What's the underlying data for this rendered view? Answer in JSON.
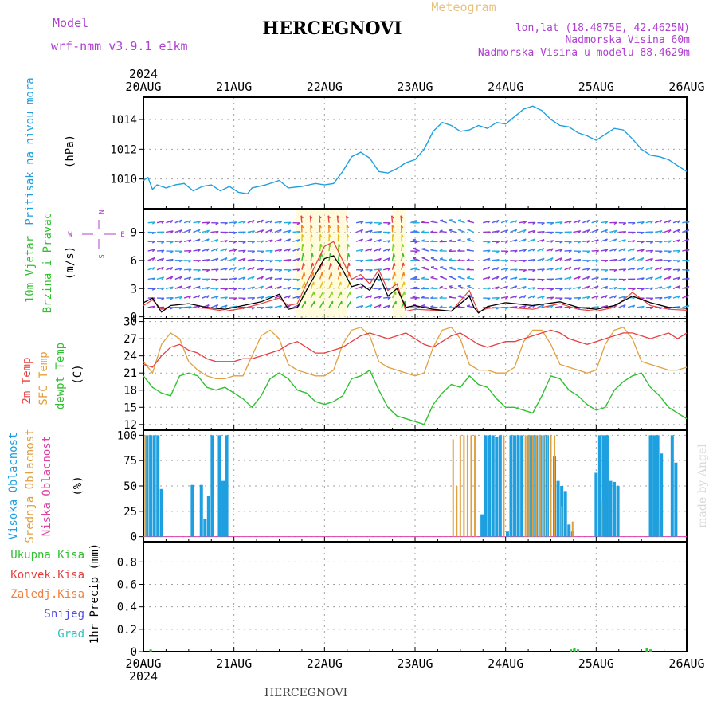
{
  "header": {
    "model_label": "Model",
    "model_name": "wrf-nmm_v3.9.1 e1km",
    "title": "HERCEGNOVI",
    "meteogram_label": "Meteogram",
    "lonlat": "lon,lat (18.4875E, 42.4625N)",
    "elevation": "Nadmorska Visina 60m",
    "model_elevation": "Nadmorska Visina u modelu 88.4629m",
    "footer_title": "HERCEGNOVI",
    "credit": "made by Angel"
  },
  "colors": {
    "purple": "#b040d0",
    "pressure": "#1ea0e0",
    "wind_green": "#30c030",
    "t2m": "#e84040",
    "sfc": "#e0a040",
    "dew": "#30c030",
    "cloud_high": "#1ea0e0",
    "cloud_mid": "#e0a040",
    "cloud_low": "#e040a0",
    "precip_total": "#30c030",
    "precip_conv": "#e84040",
    "precip_frz": "#f08040",
    "precip_snow": "#5050e0",
    "precip_hail": "#30c0c0",
    "grid": "#a0a0a0"
  },
  "chart_data": [
    {
      "id": "pressure",
      "type": "line",
      "ylabel_lines": [
        "Pritisak na nivou mora",
        "(hPa)"
      ],
      "yticks": [
        "1010",
        "1012",
        "1014"
      ],
      "ylim": [
        1008,
        1015.5
      ],
      "x_unit": "days since 20AUG 00z",
      "xlim": [
        0,
        6
      ],
      "series": [
        {
          "x": [
            0,
            0.05,
            0.1,
            0.15,
            0.25,
            0.35,
            0.45,
            0.55,
            0.65,
            0.75,
            0.85,
            0.95,
            1.05,
            1.15,
            1.2,
            1.35,
            1.5,
            1.6,
            1.75,
            1.9,
            2.0,
            2.1,
            2.2,
            2.3,
            2.4,
            2.5,
            2.6,
            2.7,
            2.8,
            2.9,
            3.0,
            3.1,
            3.2,
            3.3,
            3.4,
            3.5,
            3.6,
            3.7,
            3.8,
            3.9,
            4.0,
            4.1,
            4.2,
            4.3,
            4.4,
            4.5,
            4.6,
            4.7,
            4.8,
            4.9,
            5.0,
            5.1,
            5.2,
            5.3,
            5.4,
            5.5,
            5.6,
            5.7,
            5.8,
            5.9,
            6.0
          ],
          "y": [
            1009.9,
            1010.1,
            1009.3,
            1009.6,
            1009.4,
            1009.6,
            1009.7,
            1009.2,
            1009.5,
            1009.6,
            1009.2,
            1009.5,
            1009.1,
            1009.0,
            1009.4,
            1009.6,
            1009.9,
            1009.4,
            1009.5,
            1009.7,
            1009.6,
            1009.7,
            1010.5,
            1011.5,
            1011.8,
            1011.4,
            1010.5,
            1010.4,
            1010.7,
            1011.1,
            1011.3,
            1012.0,
            1013.2,
            1013.8,
            1013.6,
            1013.2,
            1013.3,
            1013.6,
            1013.4,
            1013.8,
            1013.7,
            1014.2,
            1014.7,
            1014.9,
            1014.6,
            1014.0,
            1013.6,
            1013.5,
            1013.1,
            1012.9,
            1012.6,
            1013.0,
            1013.4,
            1013.3,
            1012.7,
            1012.0,
            1011.6,
            1011.5,
            1011.3,
            1010.9,
            1010.5
          ]
        }
      ]
    },
    {
      "id": "wind",
      "type": "line",
      "ylabel_lines": [
        "10m Vjetar",
        "Brzina i Pravac",
        "(m/s)"
      ],
      "compass": {
        "n": "N",
        "w": "W",
        "e": "E",
        "s": "S"
      },
      "yticks": [
        "0",
        "3",
        "6",
        "9"
      ],
      "ylim": [
        -0.2,
        11.5
      ],
      "x_unit": "days since 20AUG 00z",
      "xlim": [
        0,
        6
      ],
      "series": [
        {
          "name": "speed_black",
          "x": [
            0,
            0.1,
            0.2,
            0.3,
            0.5,
            0.7,
            0.9,
            1.1,
            1.3,
            1.5,
            1.6,
            1.7,
            1.8,
            1.9,
            2.0,
            2.1,
            2.2,
            2.3,
            2.4,
            2.5,
            2.6,
            2.7,
            2.8,
            2.9,
            3.0,
            3.2,
            3.4,
            3.6,
            3.65,
            3.7,
            3.8,
            4.0,
            4.3,
            4.6,
            4.8,
            5.0,
            5.2,
            5.4,
            5.6,
            5.8,
            6.0
          ],
          "y": [
            1.5,
            2.0,
            0.5,
            1.2,
            1.4,
            1.0,
            0.8,
            1.2,
            1.6,
            2.4,
            0.8,
            1.0,
            2.8,
            4.5,
            6.2,
            6.5,
            5.0,
            3.2,
            3.5,
            2.8,
            4.5,
            2.2,
            3.0,
            1.0,
            1.2,
            0.8,
            0.6,
            2.2,
            1.0,
            0.4,
            1.1,
            1.5,
            1.2,
            1.6,
            1.0,
            0.8,
            1.2,
            2.2,
            1.5,
            1.0,
            0.9
          ]
        },
        {
          "name": "gust_red",
          "x": [
            0,
            0.1,
            0.2,
            0.3,
            0.5,
            0.7,
            0.9,
            1.1,
            1.3,
            1.5,
            1.6,
            1.7,
            1.8,
            1.9,
            2.0,
            2.1,
            2.2,
            2.3,
            2.4,
            2.5,
            2.6,
            2.7,
            2.8,
            2.9,
            3.0,
            3.2,
            3.4,
            3.6,
            3.65,
            3.7,
            3.8,
            4.0,
            4.3,
            4.6,
            4.8,
            5.0,
            5.2,
            5.4,
            5.6,
            5.8,
            6.0
          ],
          "y": [
            1.2,
            1.8,
            0.8,
            1.0,
            1.0,
            0.9,
            0.6,
            0.9,
            1.4,
            2.0,
            1.2,
            1.4,
            3.5,
            5.5,
            7.5,
            8.0,
            6.0,
            4.0,
            4.5,
            3.5,
            5.0,
            2.8,
            3.5,
            0.6,
            0.8,
            0.7,
            0.6,
            2.8,
            1.6,
            0.5,
            0.9,
            1.0,
            0.8,
            1.4,
            0.8,
            0.6,
            1.0,
            2.6,
            1.2,
            0.8,
            0.7
          ]
        }
      ],
      "strong_wind_bands": [
        [
          1.68,
          2.25
        ],
        [
          2.75,
          2.9
        ]
      ]
    },
    {
      "id": "temperature",
      "type": "line",
      "ylabel_lines": [
        "2m Temp",
        "SFC Temp",
        "dewpt Temp",
        "(C)"
      ],
      "yticks": [
        "12",
        "15",
        "18",
        "21",
        "24",
        "27",
        "30"
      ],
      "ylim": [
        11,
        30.5
      ],
      "x_unit": "days since 20AUG 00z",
      "xlim": [
        0,
        6
      ],
      "series": [
        {
          "name": "2m Temp",
          "x": [
            0,
            0.1,
            0.2,
            0.3,
            0.4,
            0.5,
            0.6,
            0.7,
            0.8,
            0.9,
            1.0,
            1.1,
            1.2,
            1.3,
            1.4,
            1.5,
            1.6,
            1.7,
            1.8,
            1.9,
            2.0,
            2.1,
            2.2,
            2.3,
            2.4,
            2.5,
            2.6,
            2.7,
            2.8,
            2.9,
            3.0,
            3.1,
            3.2,
            3.3,
            3.4,
            3.5,
            3.6,
            3.7,
            3.8,
            3.9,
            4.0,
            4.1,
            4.2,
            4.3,
            4.4,
            4.5,
            4.6,
            4.7,
            4.8,
            4.9,
            5.0,
            5.1,
            5.2,
            5.3,
            5.4,
            5.5,
            5.6,
            5.7,
            5.8,
            5.9,
            6.0
          ],
          "y": [
            22.5,
            22.0,
            24.0,
            25.5,
            26.0,
            25.0,
            24.5,
            23.5,
            23.0,
            23.0,
            23.0,
            23.5,
            23.5,
            24.0,
            24.5,
            25.0,
            26.0,
            26.5,
            25.5,
            24.5,
            24.5,
            25.0,
            25.5,
            26.5,
            27.5,
            28.0,
            27.5,
            27.0,
            27.5,
            28.0,
            27.0,
            26.0,
            25.5,
            26.5,
            27.5,
            28.0,
            27.0,
            26.0,
            25.5,
            26.0,
            26.5,
            26.5,
            27.0,
            27.5,
            28.0,
            28.5,
            28.0,
            27.0,
            26.5,
            26.0,
            26.5,
            27.0,
            27.5,
            28.0,
            28.0,
            27.5,
            27.0,
            27.5,
            28.0,
            27.0,
            28.0
          ]
        },
        {
          "name": "SFC Temp",
          "x": [
            0,
            0.1,
            0.2,
            0.3,
            0.4,
            0.5,
            0.6,
            0.7,
            0.8,
            0.9,
            1.0,
            1.1,
            1.2,
            1.3,
            1.4,
            1.5,
            1.6,
            1.7,
            1.8,
            1.9,
            2.0,
            2.1,
            2.2,
            2.3,
            2.4,
            2.5,
            2.6,
            2.7,
            2.8,
            2.9,
            3.0,
            3.1,
            3.2,
            3.3,
            3.4,
            3.5,
            3.6,
            3.7,
            3.8,
            3.9,
            4.0,
            4.1,
            4.2,
            4.3,
            4.4,
            4.5,
            4.6,
            4.7,
            4.8,
            4.9,
            5.0,
            5.1,
            5.2,
            5.3,
            5.4,
            5.5,
            5.6,
            5.7,
            5.8,
            5.9,
            6.0
          ],
          "y": [
            23.0,
            21.0,
            26.0,
            28.0,
            27.0,
            23.0,
            21.5,
            20.5,
            20.0,
            20.0,
            20.5,
            20.5,
            24.0,
            27.5,
            28.5,
            27.0,
            22.5,
            21.5,
            21.0,
            20.5,
            20.5,
            21.5,
            26.0,
            28.5,
            29.0,
            27.5,
            23.0,
            22.0,
            21.5,
            21.0,
            20.5,
            21.0,
            25.5,
            28.5,
            29.0,
            27.0,
            22.5,
            21.5,
            21.5,
            21.0,
            21.0,
            22.0,
            26.5,
            28.5,
            28.5,
            26.0,
            22.5,
            22.0,
            21.5,
            21.0,
            21.5,
            26.0,
            28.5,
            29.0,
            27.0,
            23.0,
            22.5,
            22.0,
            21.5,
            21.5,
            22.0
          ]
        },
        {
          "name": "dewpt Temp",
          "x": [
            0,
            0.1,
            0.2,
            0.3,
            0.4,
            0.5,
            0.6,
            0.7,
            0.8,
            0.9,
            1.0,
            1.1,
            1.2,
            1.3,
            1.4,
            1.5,
            1.6,
            1.7,
            1.8,
            1.9,
            2.0,
            2.1,
            2.2,
            2.3,
            2.4,
            2.5,
            2.6,
            2.7,
            2.8,
            2.9,
            3.0,
            3.1,
            3.2,
            3.3,
            3.4,
            3.5,
            3.6,
            3.7,
            3.8,
            3.9,
            4.0,
            4.1,
            4.2,
            4.3,
            4.4,
            4.5,
            4.6,
            4.7,
            4.8,
            4.9,
            5.0,
            5.1,
            5.2,
            5.3,
            5.4,
            5.5,
            5.6,
            5.7,
            5.8,
            5.9,
            6.0
          ],
          "y": [
            20.5,
            18.5,
            17.5,
            17.0,
            20.5,
            21.0,
            20.5,
            18.5,
            18.0,
            18.5,
            17.5,
            16.5,
            15.0,
            17.0,
            20.0,
            21.0,
            20.0,
            18.0,
            17.5,
            16.0,
            15.5,
            16.0,
            17.0,
            20.0,
            20.5,
            21.5,
            18.0,
            15.0,
            13.5,
            13.0,
            12.5,
            12.0,
            15.5,
            17.5,
            19.0,
            18.5,
            20.5,
            19.0,
            18.5,
            16.5,
            15.0,
            15.0,
            14.5,
            14.0,
            17.0,
            20.5,
            20.0,
            18.0,
            17.0,
            15.5,
            14.5,
            15.0,
            18.0,
            19.5,
            20.5,
            21.0,
            18.5,
            17.0,
            15.0,
            14.0,
            13.0
          ]
        }
      ]
    },
    {
      "id": "cloud",
      "type": "bar",
      "ylabel_lines": [
        "Visoka Oblacnost",
        "Srednja Oblacnost",
        "Niska Oblacnost",
        "(%)"
      ],
      "yticks": [
        "0",
        "25",
        "50",
        "75",
        "100"
      ],
      "ylim": [
        -5,
        105
      ],
      "x_unit": "days since 20AUG 00z",
      "xlim": [
        0,
        6
      ],
      "series": [
        {
          "name": "Visoka Oblacnost",
          "x": [
            0.04,
            0.08,
            0.12,
            0.16,
            0.2,
            0.54,
            0.64,
            0.68,
            0.72,
            0.76,
            0.84,
            0.88,
            0.92,
            3.74,
            3.78,
            3.82,
            3.86,
            3.9,
            3.94,
            4.02,
            4.06,
            4.1,
            4.14,
            4.18,
            4.26,
            4.3,
            4.34,
            4.38,
            4.42,
            4.46,
            4.54,
            4.58,
            4.62,
            4.66,
            4.7,
            4.74,
            5.0,
            5.04,
            5.08,
            5.12,
            5.16,
            5.2,
            5.24,
            5.6,
            5.64,
            5.68,
            5.72,
            5.84,
            5.88
          ],
          "y": [
            100,
            100,
            100,
            100,
            47,
            51,
            51,
            17,
            40,
            100,
            100,
            55,
            100,
            22,
            100,
            100,
            100,
            98,
            100,
            5,
            100,
            100,
            100,
            100,
            100,
            100,
            100,
            100,
            100,
            100,
            79,
            55,
            50,
            45,
            12,
            5,
            63,
            100,
            100,
            100,
            55,
            54,
            50,
            100,
            100,
            100,
            82,
            100,
            73
          ]
        },
        {
          "name": "Srednja Oblacnost",
          "x": [
            0.02,
            3.42,
            3.46,
            3.5,
            3.54,
            3.58,
            3.62,
            3.66,
            3.98,
            4.22,
            4.26,
            4.3,
            4.34,
            4.38,
            4.42,
            4.46,
            4.5,
            4.54,
            4.62,
            4.74,
            5.06,
            5.7
          ],
          "y": [
            100,
            96,
            50,
            100,
            100,
            100,
            100,
            100,
            100,
            100,
            100,
            100,
            100,
            100,
            100,
            100,
            100,
            100,
            30,
            15,
            35,
            15
          ]
        },
        {
          "name": "Niska Oblacnost",
          "x": [],
          "y": []
        }
      ]
    },
    {
      "id": "precip",
      "type": "bar",
      "ylabel_lines": [
        "1hr Precip (mm)"
      ],
      "legend": [
        "Ukupna Kisa",
        "Konvek.Kisa",
        "Zaledj.Kisa",
        "Snijeg",
        "Grad"
      ],
      "yticks": [
        "0",
        "0.2",
        "0.4",
        "0.6",
        "0.8"
      ],
      "ylim": [
        0,
        0.98
      ],
      "x_unit": "days since 20AUG 00z",
      "xlim": [
        0,
        6
      ],
      "series": [
        {
          "name": "Ukupna Kisa",
          "x": [
            0.08,
            4.72,
            4.76,
            4.8,
            5.56,
            5.6
          ],
          "y": [
            0.02,
            0.02,
            0.03,
            0.02,
            0.03,
            0.02
          ]
        }
      ]
    }
  ],
  "x_axis": {
    "year": "2024",
    "ticks": [
      "20AUG",
      "21AUG",
      "22AUG",
      "23AUG",
      "24AUG",
      "25AUG",
      "26AUG"
    ]
  }
}
